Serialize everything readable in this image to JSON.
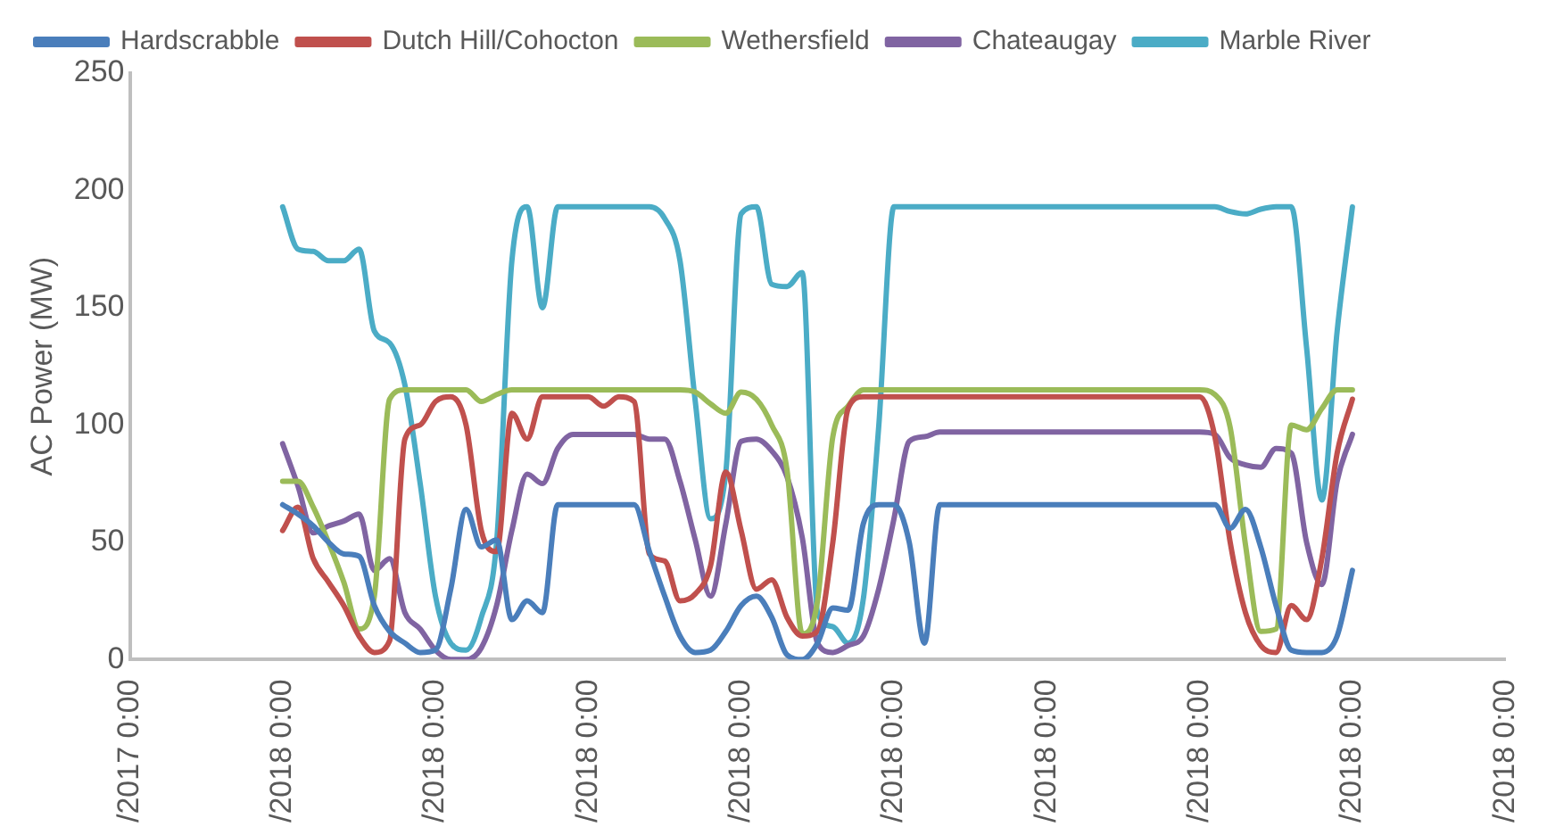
{
  "chart_data": {
    "type": "line",
    "ylabel": "AC Power (MW)",
    "categories": [
      "/2017 0:00",
      null,
      null,
      null,
      null,
      null,
      null,
      null,
      null,
      null,
      "/2018 0:00",
      null,
      null,
      null,
      null,
      null,
      null,
      null,
      null,
      null,
      "/2018 0:00",
      null,
      null,
      null,
      null,
      null,
      null,
      null,
      null,
      null,
      "/2018 0:00",
      null,
      null,
      null,
      null,
      null,
      null,
      null,
      null,
      null,
      "/2018 0:00",
      null,
      null,
      null,
      null,
      null,
      null,
      null,
      null,
      null,
      "/2018 0:00",
      null,
      null,
      null,
      null,
      null,
      null,
      null,
      null,
      null,
      "/2018 0:00",
      null,
      null,
      null,
      null,
      null,
      null,
      null,
      null,
      null,
      "/2018 0:00",
      null,
      null,
      null,
      null,
      null,
      null,
      null,
      null,
      null,
      "/2018 0:00",
      null,
      null,
      null,
      null,
      null,
      null,
      null,
      null,
      null,
      "/2018 0:00"
    ],
    "ylim": [
      0,
      250
    ],
    "yticks": [
      0,
      50,
      100,
      150,
      200,
      250
    ],
    "legend": "top left",
    "line_style": "solid",
    "series": [
      {
        "name": "Hardscrabble",
        "color": "#4a7ebb",
        "values": [
          null,
          null,
          null,
          null,
          null,
          null,
          null,
          null,
          null,
          null,
          66,
          62,
          57,
          50,
          45,
          44,
          23,
          12,
          7,
          3,
          4,
          30,
          64,
          48,
          51,
          17,
          25,
          20,
          66,
          66,
          66,
          66,
          66,
          66,
          46,
          27,
          10,
          3,
          4,
          12,
          23,
          27,
          18,
          2,
          0,
          7,
          22,
          21,
          58,
          66,
          66,
          50,
          7,
          66,
          66,
          66,
          66,
          66,
          66,
          66,
          66,
          66,
          66,
          66,
          66,
          66,
          66,
          66,
          66,
          66,
          66,
          66,
          56,
          64,
          48,
          23,
          4,
          3,
          3,
          10,
          38,
          null,
          null,
          null,
          null,
          null,
          null,
          null,
          null,
          null,
          null
        ]
      },
      {
        "name": "Dutch Hill/Cohocton",
        "color": "#c0504d",
        "values": [
          null,
          null,
          null,
          null,
          null,
          null,
          null,
          null,
          null,
          null,
          55,
          65,
          43,
          33,
          23,
          10,
          3,
          8,
          94,
          100,
          110,
          112,
          100,
          55,
          46,
          105,
          94,
          112,
          112,
          112,
          112,
          108,
          112,
          110,
          45,
          42,
          25,
          28,
          40,
          80,
          55,
          30,
          34,
          18,
          10,
          12,
          50,
          107,
          112,
          112,
          112,
          112,
          112,
          112,
          112,
          112,
          112,
          112,
          112,
          112,
          112,
          112,
          112,
          112,
          112,
          112,
          112,
          112,
          112,
          112,
          112,
          95,
          50,
          20,
          6,
          3,
          23,
          17,
          43,
          88,
          111,
          null,
          null,
          null,
          null,
          null,
          null,
          null,
          null,
          null,
          null
        ]
      },
      {
        "name": "Wethersfield",
        "color": "#9bbb59",
        "values": [
          null,
          null,
          null,
          null,
          null,
          null,
          null,
          null,
          null,
          null,
          76,
          76,
          65,
          50,
          33,
          13,
          27,
          111,
          115,
          115,
          115,
          115,
          115,
          110,
          113,
          115,
          115,
          115,
          115,
          115,
          115,
          115,
          115,
          115,
          115,
          115,
          115,
          114,
          109,
          105,
          114,
          111,
          100,
          81,
          11,
          25,
          95,
          108,
          115,
          115,
          115,
          115,
          115,
          115,
          115,
          115,
          115,
          115,
          115,
          115,
          115,
          115,
          115,
          115,
          115,
          115,
          115,
          115,
          115,
          115,
          115,
          113,
          99,
          49,
          12,
          13,
          100,
          98,
          107,
          115,
          115,
          null,
          null,
          null,
          null,
          null,
          null,
          null,
          null,
          null,
          null
        ]
      },
      {
        "name": "Chateaugay",
        "color": "#8064a2",
        "values": [
          null,
          null,
          null,
          null,
          null,
          null,
          null,
          null,
          null,
          null,
          92,
          74,
          54,
          57,
          59,
          62,
          38,
          43,
          20,
          13,
          4,
          0,
          0,
          5,
          23,
          55,
          79,
          75,
          90,
          96,
          96,
          96,
          96,
          96,
          94,
          94,
          76,
          51,
          27,
          58,
          93,
          94,
          89,
          78,
          52,
          7,
          3,
          6,
          10,
          30,
          60,
          93,
          95,
          97,
          97,
          97,
          97,
          97,
          97,
          97,
          97,
          97,
          97,
          97,
          97,
          97,
          97,
          97,
          97,
          97,
          97,
          96,
          86,
          83,
          82,
          90,
          88,
          50,
          32,
          76,
          96,
          null,
          null,
          null,
          null,
          null,
          null,
          null,
          null,
          null,
          null
        ]
      },
      {
        "name": "Marble River",
        "color": "#4bacc6",
        "values": [
          null,
          null,
          null,
          null,
          null,
          null,
          null,
          null,
          null,
          null,
          193,
          175,
          174,
          170,
          170,
          175,
          140,
          135,
          117,
          75,
          27,
          7,
          4,
          18,
          50,
          170,
          193,
          150,
          193,
          193,
          193,
          193,
          193,
          193,
          193,
          188,
          170,
          110,
          60,
          80,
          190,
          193,
          160,
          159,
          165,
          20,
          14,
          7,
          26,
          99,
          193,
          193,
          193,
          193,
          193,
          193,
          193,
          193,
          193,
          193,
          193,
          193,
          193,
          193,
          193,
          193,
          193,
          193,
          193,
          193,
          193,
          193,
          191,
          190,
          192,
          193,
          193,
          133,
          68,
          140,
          193,
          null,
          null,
          null,
          null,
          null,
          null,
          null,
          null,
          null,
          null
        ]
      }
    ]
  }
}
